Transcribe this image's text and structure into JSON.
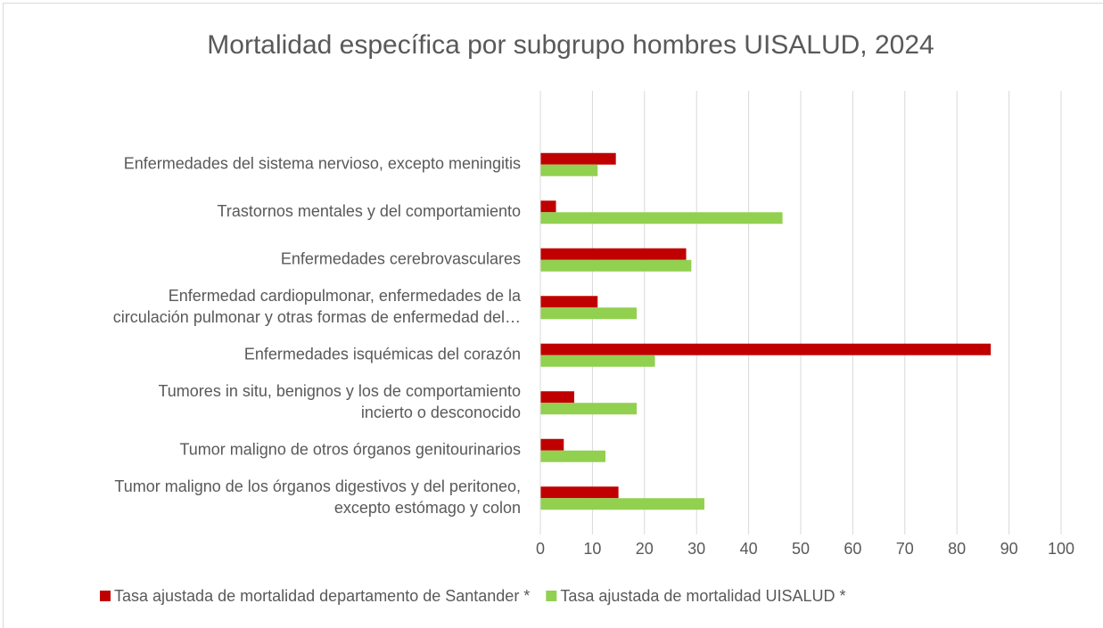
{
  "chart_data": {
    "type": "hbar",
    "title": "Mortalidad específica por subgrupo hombres UISALUD, 2024",
    "categories": [
      [
        "Enfermedades del sistema nervioso, excepto meningitis"
      ],
      [
        "Trastornos mentales y del comportamiento"
      ],
      [
        "Enfermedades cerebrovasculares"
      ],
      [
        "Enfermedad cardiopulmonar, enfermedades de la",
        "circulación pulmonar y otras formas de enfermedad del…"
      ],
      [
        "Enfermedades isquémicas del corazón"
      ],
      [
        "Tumores in situ, benignos y los de comportamiento",
        "incierto o desconocido"
      ],
      [
        "Tumor maligno de otros órganos genitourinarios"
      ],
      [
        "Tumor maligno de los órganos digestivos y del peritoneo,",
        "excepto estómago y colon"
      ]
    ],
    "series": [
      {
        "name": "Tasa ajustada de mortalidad departamento de Santander *",
        "color": "#c00000",
        "values": [
          14.5,
          3,
          28,
          11,
          86.5,
          6.5,
          4.5,
          15
        ]
      },
      {
        "name": "Tasa ajustada de mortalidad UISALUD *",
        "color": "#92d050",
        "values": [
          11,
          46.5,
          29,
          18.5,
          22,
          18.5,
          12.5,
          31.5
        ]
      }
    ],
    "xlim": [
      0,
      100
    ],
    "xticks": [
      0,
      10,
      20,
      30,
      40,
      50,
      60,
      70,
      80,
      90,
      100
    ],
    "grid": true,
    "legend": "bottom"
  }
}
